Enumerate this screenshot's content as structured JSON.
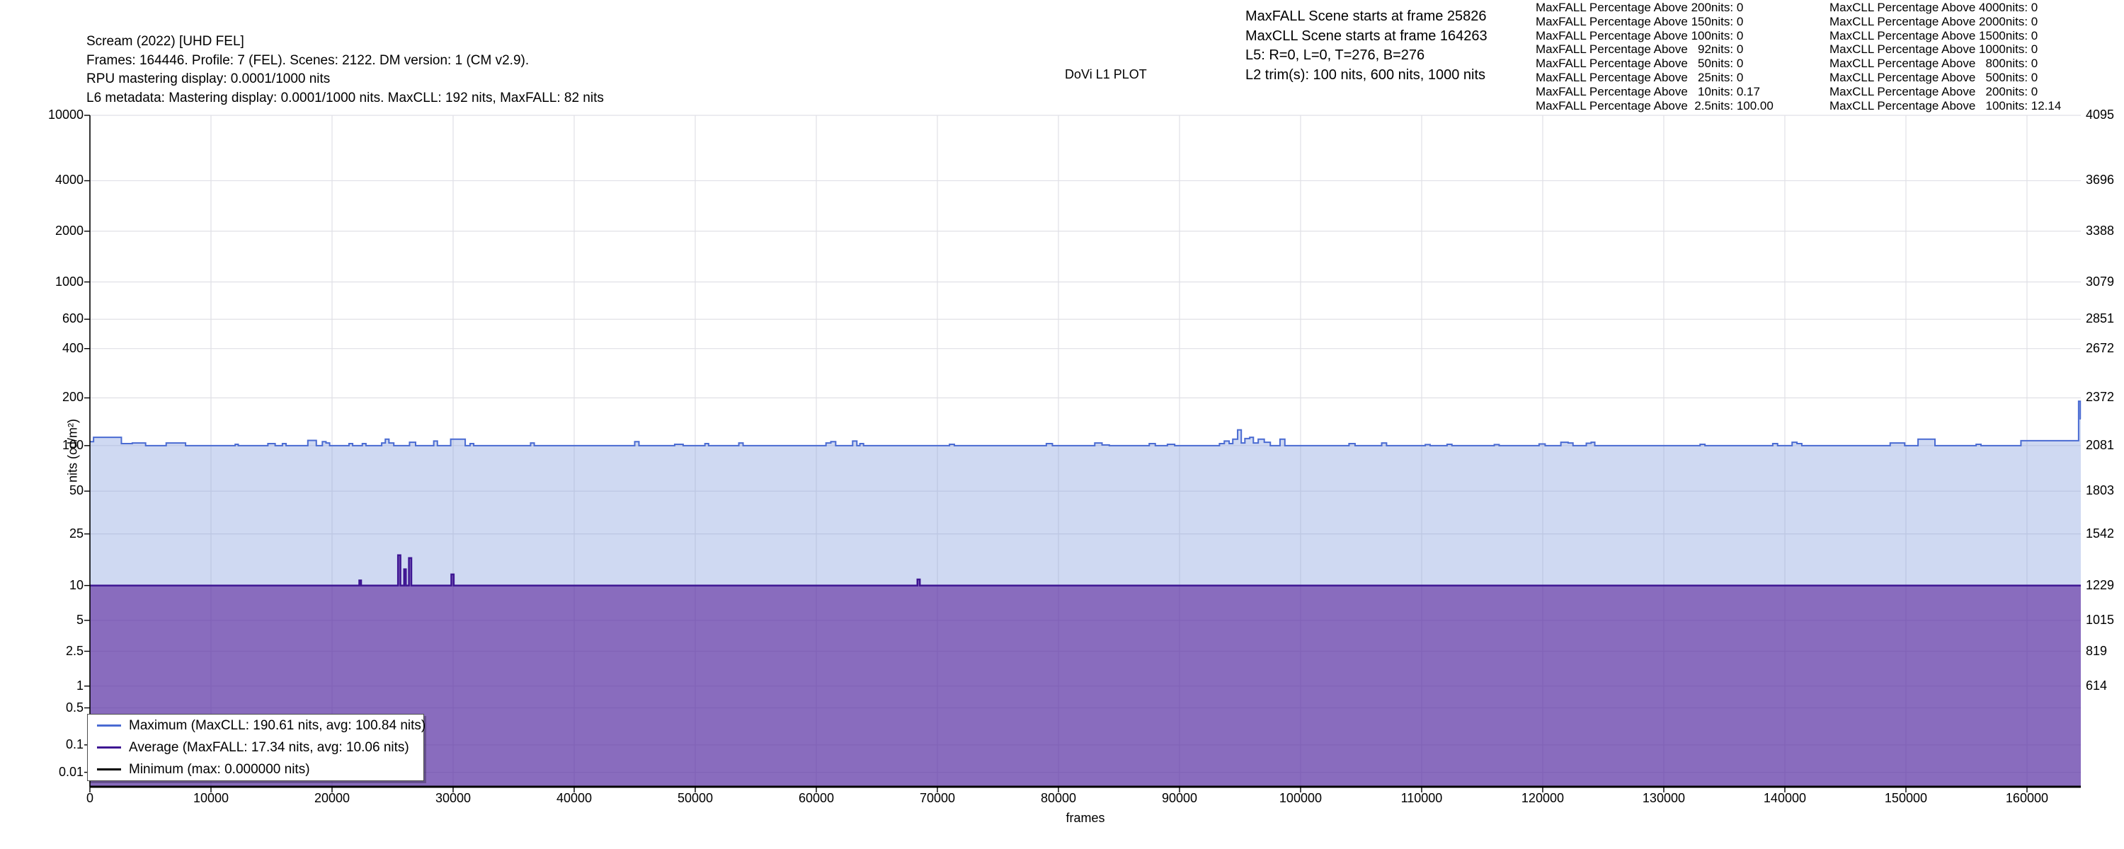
{
  "header": {
    "title_block": {
      "lines": [
        "Scream (2022) [UHD FEL]",
        "Frames: 164446. Profile: 7 (FEL). Scenes: 2122. DM version: 1 (CM v2.9).",
        "RPU mastering display: 0.0001/1000 nits",
        "L6 metadata: Mastering display: 0.0001/1000 nits. MaxCLL: 192 nits, MaxFALL: 82 nits"
      ]
    },
    "plot_title": "DoVi L1 PLOT",
    "scene_block": {
      "lines": [
        "MaxFALL Scene starts at frame 25826",
        "MaxCLL Scene starts at frame 164263",
        "L5: R=0, L=0, T=276, B=276",
        "L2 trim(s): 100 nits, 600 nits, 1000 nits"
      ]
    },
    "maxfall_list": {
      "lines": [
        "MaxFALL Percentage Above 200nits: 0",
        "MaxFALL Percentage Above 150nits: 0",
        "MaxFALL Percentage Above 100nits: 0",
        "MaxFALL Percentage Above   92nits: 0",
        "MaxFALL Percentage Above   50nits: 0",
        "MaxFALL Percentage Above   25nits: 0",
        "MaxFALL Percentage Above   10nits: 0.17",
        "MaxFALL Percentage Above  2.5nits: 100.00"
      ]
    },
    "maxcll_list": {
      "lines": [
        "MaxCLL Percentage Above 4000nits: 0",
        "MaxCLL Percentage Above 2000nits: 0",
        "MaxCLL Percentage Above 1500nits: 0",
        "MaxCLL Percentage Above 1000nits: 0",
        "MaxCLL Percentage Above   800nits: 0",
        "MaxCLL Percentage Above   500nits: 0",
        "MaxCLL Percentage Above   200nits: 0",
        "MaxCLL Percentage Above   100nits: 12.14"
      ]
    }
  },
  "chart_data": {
    "type": "area",
    "xlabel": "frames",
    "ylabel": "nits (cd/m²)",
    "x_max": 164446,
    "x_ticks": [
      0,
      10000,
      20000,
      30000,
      40000,
      50000,
      60000,
      70000,
      80000,
      90000,
      100000,
      110000,
      120000,
      130000,
      140000,
      150000,
      160000
    ],
    "y_scale": "PQ (SMPTE ST 2084), nits 0 - 10000",
    "y_ticks_nits": [
      10000,
      4000,
      2000,
      1000,
      600,
      400,
      200,
      100,
      50,
      25,
      10,
      5,
      2.5,
      1,
      0.5,
      0.1,
      0.01
    ],
    "y_ticks_right_codes": [
      4095,
      3696,
      3388,
      3079,
      2851,
      2672,
      2372,
      2081,
      1803,
      1542,
      1229,
      1015,
      819,
      614
    ],
    "grid": true,
    "legend_position": "lower left",
    "legend": [
      {
        "label": "Maximum (MaxCLL: 190.61 nits, avg: 100.84 nits)",
        "color": "#4a6bd2"
      },
      {
        "label": "Average (MaxFALL: 17.34 nits, avg: 10.06 nits)",
        "color": "#3e1693"
      },
      {
        "label": "Minimum (max: 0.000000 nits)",
        "color": "#000000"
      }
    ],
    "series": [
      {
        "name": "maximum",
        "color": "#4a6bd2",
        "fill": "rgba(130,155,222,0.38)",
        "line_width": 2,
        "steps": [
          [
            0,
            106
          ],
          [
            300,
            113
          ],
          [
            2600,
            103
          ],
          [
            3500,
            104
          ],
          [
            4600,
            100
          ],
          [
            6300,
            104
          ],
          [
            7900,
            100
          ],
          [
            12000,
            102
          ],
          [
            12250,
            100
          ],
          [
            14700,
            103
          ],
          [
            15300,
            100
          ],
          [
            15900,
            103
          ],
          [
            16200,
            100
          ],
          [
            18000,
            108
          ],
          [
            18700,
            100
          ],
          [
            19200,
            106
          ],
          [
            19500,
            104
          ],
          [
            19800,
            100
          ],
          [
            21400,
            103
          ],
          [
            21700,
            100
          ],
          [
            22500,
            103
          ],
          [
            22800,
            100
          ],
          [
            24100,
            104
          ],
          [
            24400,
            110
          ],
          [
            24700,
            104
          ],
          [
            25100,
            100
          ],
          [
            26400,
            105
          ],
          [
            26900,
            100
          ],
          [
            28400,
            107
          ],
          [
            28700,
            100
          ],
          [
            29800,
            110
          ],
          [
            31000,
            100
          ],
          [
            31400,
            103
          ],
          [
            31700,
            100
          ],
          [
            36400,
            104
          ],
          [
            36700,
            100
          ],
          [
            45000,
            106
          ],
          [
            45350,
            100
          ],
          [
            48300,
            102
          ],
          [
            49000,
            100
          ],
          [
            50800,
            103
          ],
          [
            51100,
            100
          ],
          [
            53600,
            104
          ],
          [
            53950,
            100
          ],
          [
            60800,
            104
          ],
          [
            61200,
            106
          ],
          [
            61600,
            100
          ],
          [
            63000,
            107
          ],
          [
            63350,
            100
          ],
          [
            63600,
            103
          ],
          [
            63900,
            100
          ],
          [
            71000,
            102
          ],
          [
            71400,
            100
          ],
          [
            79000,
            103
          ],
          [
            79500,
            100
          ],
          [
            83000,
            104
          ],
          [
            83600,
            101
          ],
          [
            84200,
            100
          ],
          [
            87500,
            103
          ],
          [
            88000,
            100
          ],
          [
            89000,
            102
          ],
          [
            89600,
            100
          ],
          [
            93300,
            103
          ],
          [
            93700,
            107
          ],
          [
            94100,
            103
          ],
          [
            94400,
            110
          ],
          [
            94800,
            126
          ],
          [
            95100,
            104
          ],
          [
            95400,
            111
          ],
          [
            95800,
            113
          ],
          [
            96100,
            104
          ],
          [
            96500,
            110
          ],
          [
            97000,
            105
          ],
          [
            97500,
            100
          ],
          [
            98300,
            110
          ],
          [
            98700,
            100
          ],
          [
            104000,
            103
          ],
          [
            104500,
            100
          ],
          [
            106700,
            104
          ],
          [
            107100,
            100
          ],
          [
            110300,
            101.5
          ],
          [
            110700,
            100
          ],
          [
            112100,
            102
          ],
          [
            112500,
            100
          ],
          [
            116000,
            101.5
          ],
          [
            116400,
            100
          ],
          [
            119700,
            102.5
          ],
          [
            120200,
            100
          ],
          [
            121500,
            105
          ],
          [
            122100,
            104
          ],
          [
            122500,
            100
          ],
          [
            123600,
            103.5
          ],
          [
            124000,
            105
          ],
          [
            124300,
            100
          ],
          [
            133000,
            102
          ],
          [
            133400,
            100
          ],
          [
            139000,
            103
          ],
          [
            139400,
            100
          ],
          [
            140600,
            105
          ],
          [
            141000,
            103
          ],
          [
            141400,
            100
          ],
          [
            148700,
            104
          ],
          [
            149900,
            100
          ],
          [
            151000,
            110
          ],
          [
            152400,
            100
          ],
          [
            155800,
            102
          ],
          [
            156200,
            100
          ],
          [
            159500,
            107.5
          ],
          [
            164263,
            190.61
          ],
          [
            164400,
            148
          ]
        ]
      },
      {
        "name": "average",
        "color": "#3e1693",
        "fill": "rgba(81,19,148,0.55)",
        "line_width": 2.5,
        "steps": [
          [
            0,
            10
          ],
          [
            22250,
            11
          ],
          [
            22400,
            10
          ],
          [
            25450,
            17.34
          ],
          [
            25650,
            10
          ],
          [
            25950,
            13.5
          ],
          [
            26100,
            10
          ],
          [
            26350,
            16.5
          ],
          [
            26550,
            10
          ],
          [
            29850,
            12.3
          ],
          [
            30050,
            10
          ],
          [
            68350,
            11.2
          ],
          [
            68550,
            10
          ]
        ]
      },
      {
        "name": "minimum",
        "color": "#000000",
        "fill": null,
        "line_width": 3,
        "steps": [
          [
            0,
            0
          ]
        ]
      }
    ]
  },
  "colors": {
    "grid": "#e0e0e6",
    "axis": "#000000",
    "background": "#ffffff"
  }
}
